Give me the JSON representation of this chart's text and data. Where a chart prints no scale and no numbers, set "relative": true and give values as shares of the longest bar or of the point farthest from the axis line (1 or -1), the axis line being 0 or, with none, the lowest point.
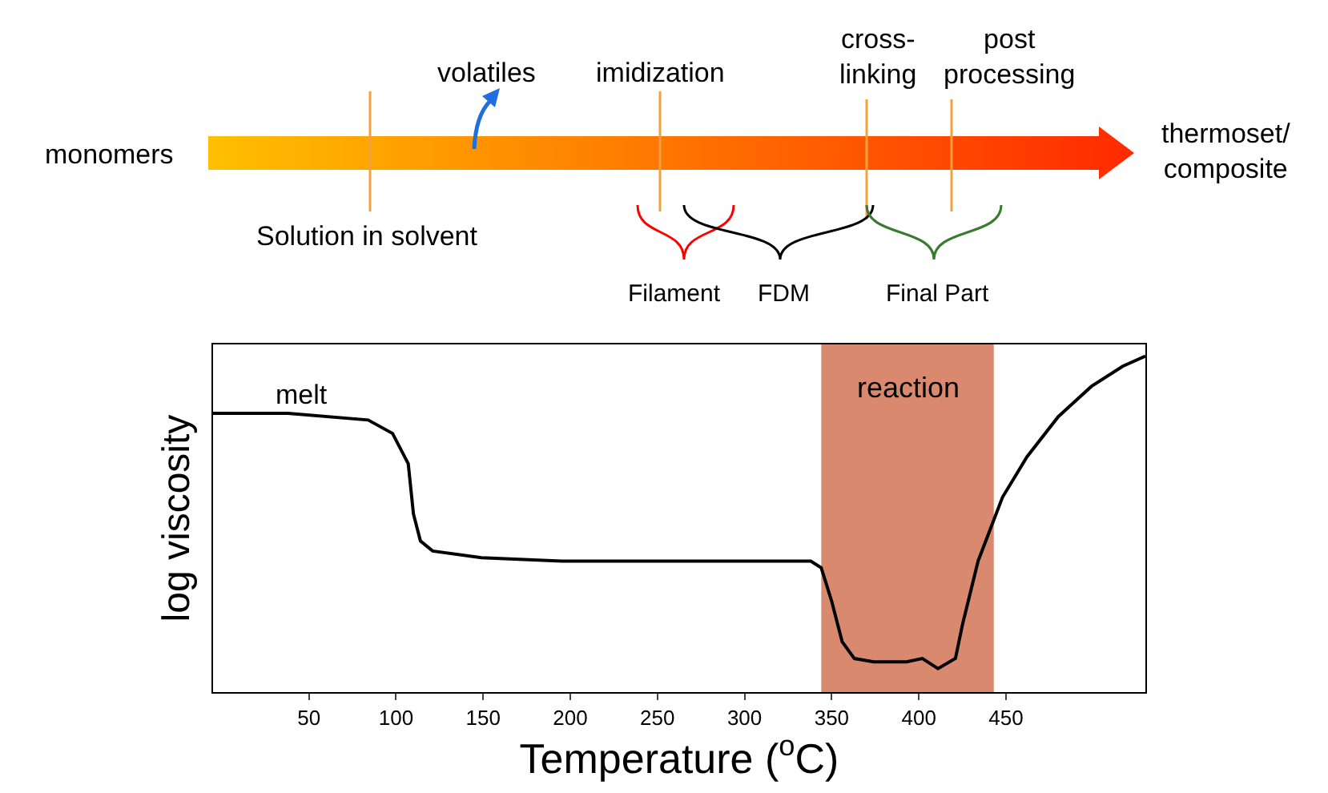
{
  "chart_data": {
    "type": "line",
    "relative": true,
    "xlabel": "Temperature ($^{o}$C)",
    "ylabel": "log viscosity",
    "xlim": [
      -5,
      530
    ],
    "xticks": [
      50,
      100,
      150,
      200,
      250,
      300,
      350,
      400,
      450
    ],
    "grid": false,
    "marker": "none",
    "line_style": "solid",
    "series": [
      {
        "color": "#000000",
        "x": [
          -5,
          38,
          84,
          98,
          107,
          110,
          114,
          121,
          149,
          195,
          287,
          338,
          344,
          350,
          356,
          363,
          374,
          393,
          402,
          411,
          421,
          425,
          434,
          448,
          462,
          480,
          499,
          517,
          530
        ],
        "values": [
          0.83,
          0.83,
          0.81,
          0.77,
          0.68,
          0.53,
          0.45,
          0.42,
          0.4,
          0.39,
          0.39,
          0.39,
          0.37,
          0.27,
          0.15,
          0.1,
          0.09,
          0.09,
          0.1,
          0.07,
          0.1,
          0.2,
          0.39,
          0.58,
          0.7,
          0.82,
          0.91,
          0.97,
          1
        ]
      }
    ],
    "bands": [
      {
        "axis": "x",
        "from": 344,
        "to": 443,
        "label": "reaction",
        "color": "#d98a6e"
      }
    ],
    "annotations": [
      "melt",
      "monomers",
      "volatiles",
      "imidization",
      "cross-\nlinking",
      "post\nprocessing",
      "thermoset/\ncomposite",
      "Solution in solvent",
      "Filament",
      "FDM",
      "Final Part"
    ]
  }
}
